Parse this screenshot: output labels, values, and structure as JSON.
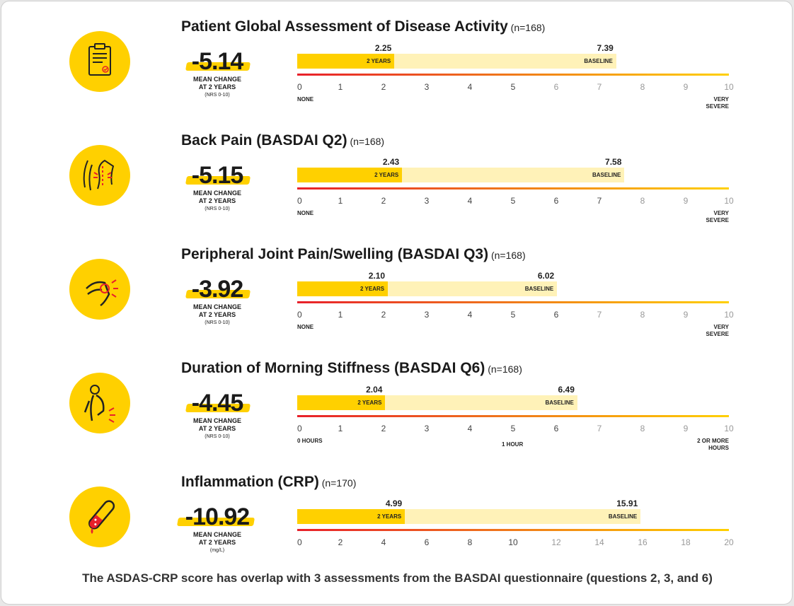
{
  "footnote": "The ASDAS-CRP score has overlap with 3 assessments from the BASDAI questionnaire (questions 2, 3, and 6)",
  "chart_data": [
    {
      "type": "bar",
      "icon": "clipboard-icon",
      "title": "Patient Global Assessment of Disease Activity",
      "n": "(n=168)",
      "mean_change": "-5.14",
      "mean_label_1": "MEAN CHANGE",
      "mean_label_2": "AT 2 YEARS",
      "unit": "(NRS 0-10)",
      "xlim": [
        0,
        10
      ],
      "ticks": [
        "0",
        "1",
        "2",
        "3",
        "4",
        "5",
        "6",
        "7",
        "8",
        "9",
        "10"
      ],
      "faded_from": 6,
      "values": {
        "two_years": 2.25,
        "baseline": 7.39
      },
      "value_labels": {
        "two_years": "2.25",
        "baseline": "7.39"
      },
      "bar_labels": {
        "two_years": "2 YEARS",
        "baseline": "BASELINE"
      },
      "anchors": {
        "left": "NONE",
        "right_1": "VERY",
        "right_2": "SEVERE"
      }
    },
    {
      "type": "bar",
      "icon": "back-pain-icon",
      "title": "Back Pain (BASDAI Q2)",
      "n": "(n=168)",
      "mean_change": "-5.15",
      "mean_label_1": "MEAN CHANGE",
      "mean_label_2": "AT 2 YEARS",
      "unit": "(NRS 0-10)",
      "xlim": [
        0,
        10
      ],
      "ticks": [
        "0",
        "1",
        "2",
        "3",
        "4",
        "5",
        "6",
        "7",
        "8",
        "9",
        "10"
      ],
      "faded_from": 8,
      "values": {
        "two_years": 2.43,
        "baseline": 7.58
      },
      "value_labels": {
        "two_years": "2.43",
        "baseline": "7.58"
      },
      "bar_labels": {
        "two_years": "2 YEARS",
        "baseline": "BASELINE"
      },
      "anchors": {
        "left": "NONE",
        "right_1": "VERY",
        "right_2": "SEVERE"
      }
    },
    {
      "type": "bar",
      "icon": "knee-pain-icon",
      "title": "Peripheral Joint Pain/Swelling (BASDAI Q3)",
      "n": "(n=168)",
      "mean_change": "-3.92",
      "mean_label_1": "MEAN CHANGE",
      "mean_label_2": "AT 2 YEARS",
      "unit": "(NRS 0-10)",
      "xlim": [
        0,
        10
      ],
      "ticks": [
        "0",
        "1",
        "2",
        "3",
        "4",
        "5",
        "6",
        "7",
        "8",
        "9",
        "10"
      ],
      "faded_from": 7,
      "values": {
        "two_years": 2.1,
        "baseline": 6.02
      },
      "value_labels": {
        "two_years": "2.10",
        "baseline": "6.02"
      },
      "bar_labels": {
        "two_years": "2 YEARS",
        "baseline": "BASELINE"
      },
      "anchors": {
        "left": "NONE",
        "right_1": "VERY",
        "right_2": "SEVERE"
      }
    },
    {
      "type": "bar",
      "icon": "stiff-back-icon",
      "title": "Duration of Morning Stiffness (BASDAI Q6)",
      "n": "(n=168)",
      "mean_change": "-4.45",
      "mean_label_1": "MEAN CHANGE",
      "mean_label_2": "AT 2 YEARS",
      "unit": "(NRS 0-10)",
      "xlim": [
        0,
        10
      ],
      "ticks": [
        "0",
        "1",
        "2",
        "3",
        "4",
        "5",
        "6",
        "7",
        "8",
        "9",
        "10"
      ],
      "faded_from": 7,
      "values": {
        "two_years": 2.04,
        "baseline": 6.49
      },
      "value_labels": {
        "two_years": "2.04",
        "baseline": "6.49"
      },
      "bar_labels": {
        "two_years": "2 YEARS",
        "baseline": "BASELINE"
      },
      "anchors": {
        "left": "0 HOURS",
        "mid": "1 HOUR",
        "mid_at": 5,
        "right_1": "2 OR MORE",
        "right_2": "HOURS"
      }
    },
    {
      "type": "bar",
      "icon": "blood-tube-icon",
      "title": "Inflammation (CRP)",
      "n": "(n=170)",
      "mean_change": "-10.92",
      "mean_label_1": "MEAN CHANGE",
      "mean_label_2": "AT 2 YEARS",
      "unit": "(mg/L)",
      "xlim": [
        0,
        20
      ],
      "ticks": [
        "0",
        "2",
        "4",
        "6",
        "8",
        "10",
        "12",
        "14",
        "16",
        "18",
        "20"
      ],
      "faded_from": 6,
      "values": {
        "two_years": 4.99,
        "baseline": 15.91
      },
      "value_labels": {
        "two_years": "4.99",
        "baseline": "15.91"
      },
      "bar_labels": {
        "two_years": "2 YEARS",
        "baseline": "BASELINE"
      },
      "anchors": {}
    }
  ]
}
